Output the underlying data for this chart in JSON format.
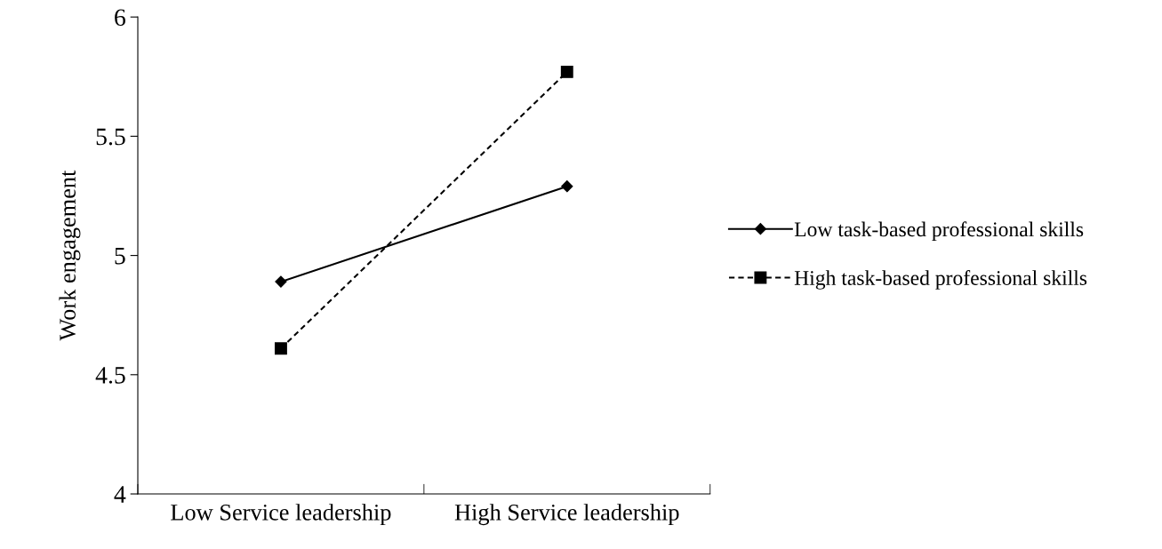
{
  "chart_data": {
    "type": "line",
    "ylabel": "Work engagement",
    "categories": [
      "Low Service leadership",
      "High Service leadership"
    ],
    "series": [
      {
        "name": "Low task-based professional skills",
        "color": "#000000",
        "values": [
          4.89,
          5.29
        ],
        "marker": "diamond",
        "line_style": "solid"
      },
      {
        "name": "High task-based professional skills",
        "color": "#000000",
        "values": [
          4.61,
          5.77
        ],
        "marker": "square",
        "line_style": "dashed"
      }
    ],
    "ylim": [
      4,
      6
    ],
    "yticks": [
      4,
      4.5,
      5,
      5.5,
      6
    ],
    "grid": false,
    "legend": "right"
  }
}
